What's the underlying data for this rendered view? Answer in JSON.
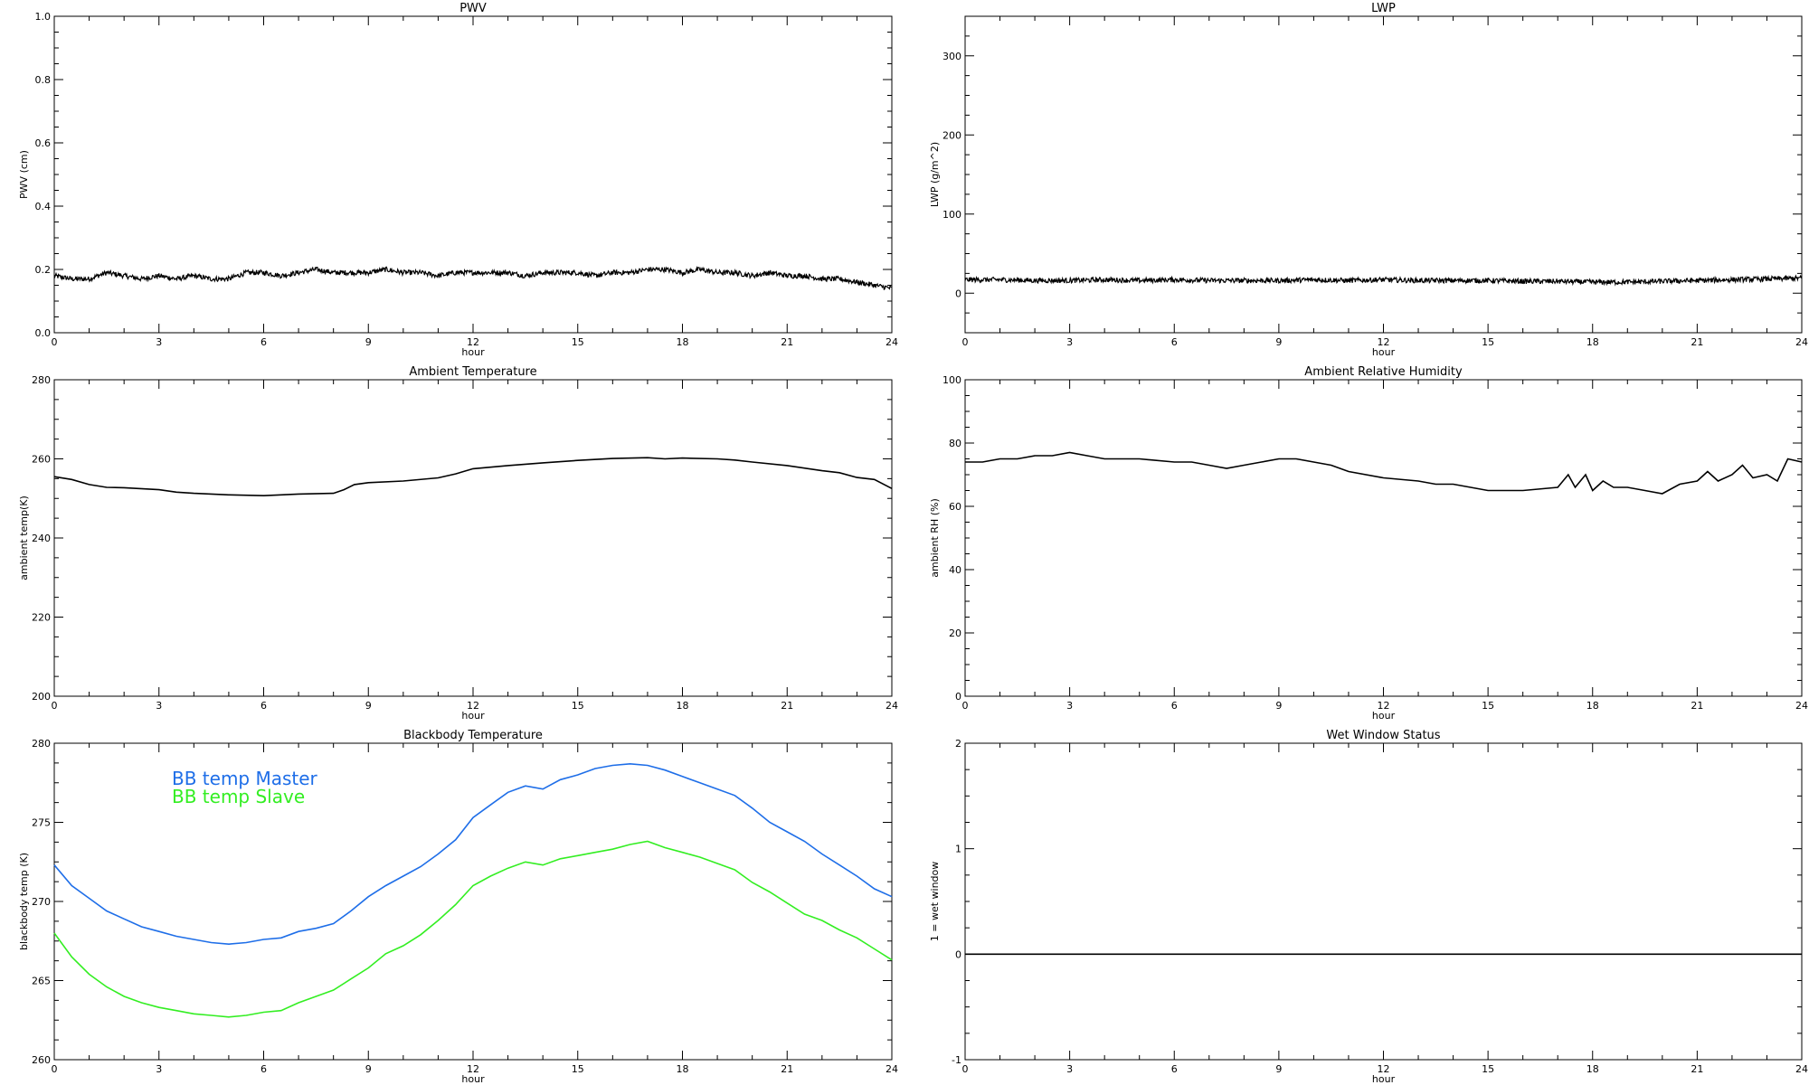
{
  "chart_data": [
    {
      "id": "pwv",
      "type": "line",
      "title": "PWV",
      "xlabel": "hour",
      "ylabel": "PWV (cm)",
      "xlim": [
        0,
        24
      ],
      "ylim": [
        0.0,
        1.0
      ],
      "xticks": [
        0,
        3,
        6,
        9,
        12,
        15,
        18,
        21,
        24
      ],
      "yticks": [
        "0.0",
        "0.2",
        "0.4",
        "0.6",
        "0.8",
        "1.0"
      ],
      "yticks_values": [
        0.0,
        0.2,
        0.4,
        0.6,
        0.8,
        1.0
      ],
      "series": [
        {
          "color": "#000000",
          "noisy": true,
          "x": [
            0,
            0.5,
            1,
            1.5,
            2,
            2.5,
            3,
            3.5,
            4,
            4.5,
            5,
            5.5,
            6,
            6.5,
            7,
            7.5,
            8,
            8.5,
            9,
            9.5,
            10,
            10.5,
            11,
            11.5,
            12,
            12.5,
            13,
            13.5,
            14,
            14.5,
            15,
            15.5,
            16,
            16.5,
            17,
            17.5,
            18,
            18.5,
            19,
            19.5,
            20,
            20.5,
            21,
            21.5,
            22,
            22.5,
            23,
            23.5,
            24
          ],
          "y": [
            0.18,
            0.17,
            0.17,
            0.19,
            0.18,
            0.17,
            0.18,
            0.17,
            0.18,
            0.17,
            0.17,
            0.19,
            0.19,
            0.18,
            0.19,
            0.2,
            0.19,
            0.19,
            0.19,
            0.2,
            0.19,
            0.19,
            0.18,
            0.19,
            0.19,
            0.19,
            0.19,
            0.18,
            0.19,
            0.19,
            0.19,
            0.18,
            0.19,
            0.19,
            0.2,
            0.2,
            0.19,
            0.2,
            0.19,
            0.19,
            0.18,
            0.19,
            0.18,
            0.18,
            0.17,
            0.17,
            0.16,
            0.15,
            0.14
          ]
        }
      ]
    },
    {
      "id": "lwp",
      "type": "line",
      "title": "LWP",
      "xlabel": "hour",
      "ylabel": "LWP (g/m^2)",
      "xlim": [
        0,
        24
      ],
      "ylim": [
        -50,
        350
      ],
      "xticks": [
        0,
        3,
        6,
        9,
        12,
        15,
        18,
        21,
        24
      ],
      "yticks": [
        "0",
        "100",
        "200",
        "300"
      ],
      "yticks_values": [
        0,
        100,
        200,
        300
      ],
      "series": [
        {
          "color": "#000000",
          "noisy": true,
          "x": [
            0,
            1,
            2,
            3,
            4,
            5,
            6,
            7,
            8,
            9,
            10,
            11,
            12,
            13,
            14,
            15,
            16,
            17,
            18,
            19,
            20,
            21,
            22,
            23,
            24
          ],
          "y": [
            17,
            17,
            16,
            16,
            17,
            16,
            17,
            16,
            16,
            16,
            17,
            16,
            17,
            16,
            16,
            16,
            15,
            15,
            14,
            14,
            15,
            16,
            17,
            18,
            19
          ]
        }
      ]
    },
    {
      "id": "ambient-temperature",
      "type": "line",
      "title": "Ambient Temperature",
      "xlabel": "hour",
      "ylabel": "ambient temp(K)",
      "xlim": [
        0,
        24
      ],
      "ylim": [
        200,
        280
      ],
      "xticks": [
        0,
        3,
        6,
        9,
        12,
        15,
        18,
        21,
        24
      ],
      "yticks": [
        "200",
        "220",
        "240",
        "260",
        "280"
      ],
      "yticks_values": [
        200,
        220,
        240,
        260,
        280
      ],
      "series": [
        {
          "color": "#000000",
          "x": [
            0,
            0.5,
            1,
            1.5,
            2,
            3,
            3.5,
            4,
            5,
            6,
            7,
            8,
            8.3,
            8.6,
            9,
            10,
            11,
            11.5,
            12,
            13,
            14,
            15,
            16,
            17,
            17.5,
            18,
            19,
            19.5,
            20,
            21,
            22,
            22.5,
            23,
            23.5,
            24
          ],
          "y": [
            255.5,
            254.8,
            253.5,
            252.8,
            252.7,
            252.2,
            251.6,
            251.3,
            250.9,
            250.7,
            251.1,
            251.3,
            252.2,
            253.5,
            254.0,
            254.4,
            255.2,
            256.2,
            257.5,
            258.3,
            259.0,
            259.6,
            260.1,
            260.3,
            260.0,
            260.2,
            260.0,
            259.7,
            259.2,
            258.3,
            257.0,
            256.5,
            255.3,
            254.8,
            252.5
          ]
        }
      ]
    },
    {
      "id": "ambient-relative-humidity",
      "type": "line",
      "title": "Ambient Relative Humidity",
      "xlabel": "hour",
      "ylabel": "ambient RH (%)",
      "xlim": [
        0,
        24
      ],
      "ylim": [
        0,
        100
      ],
      "xticks": [
        0,
        3,
        6,
        9,
        12,
        15,
        18,
        21,
        24
      ],
      "yticks": [
        "0",
        "20",
        "40",
        "60",
        "80",
        "100"
      ],
      "yticks_values": [
        0,
        20,
        40,
        60,
        80,
        100
      ],
      "series": [
        {
          "color": "#000000",
          "x": [
            0,
            0.5,
            1,
            1.5,
            2,
            2.5,
            3,
            3.5,
            4,
            5,
            6,
            6.5,
            7,
            7.5,
            8,
            8.5,
            9,
            9.5,
            10,
            10.5,
            11,
            12,
            13,
            13.5,
            14,
            14.5,
            15,
            16,
            17,
            17.3,
            17.5,
            17.8,
            18,
            18.3,
            18.6,
            19,
            19.5,
            20,
            20.5,
            21,
            21.3,
            21.6,
            22,
            22.3,
            22.6,
            23,
            23.3,
            23.6,
            24
          ],
          "y": [
            74,
            74,
            75,
            75,
            76,
            76,
            77,
            76,
            75,
            75,
            74,
            74,
            73,
            72,
            73,
            74,
            75,
            75,
            74,
            73,
            71,
            69,
            68,
            67,
            67,
            66,
            65,
            65,
            66,
            70,
            66,
            70,
            65,
            68,
            66,
            66,
            65,
            64,
            67,
            68,
            71,
            68,
            70,
            73,
            69,
            70,
            68,
            75,
            74
          ]
        }
      ]
    },
    {
      "id": "blackbody-temperature",
      "type": "line",
      "title": "Blackbody Temperature",
      "xlabel": "hour",
      "ylabel": "blackbody temp (K)",
      "xlim": [
        0,
        24
      ],
      "ylim": [
        260,
        280
      ],
      "xticks": [
        0,
        3,
        6,
        9,
        12,
        15,
        18,
        21,
        24
      ],
      "yticks": [
        "260",
        "265",
        "270",
        "275",
        "280"
      ],
      "yticks_values": [
        260,
        265,
        270,
        275,
        280
      ],
      "legend": "top-left",
      "series": [
        {
          "name": "BB temp Master",
          "color": "#1e6ee8",
          "x": [
            0,
            0.5,
            1,
            1.5,
            2,
            2.5,
            3,
            3.5,
            4,
            4.5,
            5,
            5.5,
            6,
            6.5,
            7,
            7.5,
            8,
            8.5,
            9,
            9.5,
            10,
            10.5,
            11,
            11.5,
            12,
            12.5,
            13,
            13.5,
            14,
            14.5,
            15,
            15.5,
            16,
            16.5,
            17,
            17.5,
            18,
            18.5,
            19,
            19.5,
            20,
            20.5,
            21,
            21.5,
            22,
            22.5,
            23,
            23.5,
            24
          ],
          "y": [
            272.3,
            271.0,
            270.2,
            269.4,
            268.9,
            268.4,
            268.1,
            267.8,
            267.6,
            267.4,
            267.3,
            267.4,
            267.6,
            267.7,
            268.1,
            268.3,
            268.6,
            269.4,
            270.3,
            271.0,
            271.6,
            272.2,
            273.0,
            273.9,
            275.3,
            276.1,
            276.9,
            277.3,
            277.1,
            277.7,
            278.0,
            278.4,
            278.6,
            278.7,
            278.6,
            278.3,
            277.9,
            277.5,
            277.1,
            276.7,
            275.9,
            275.0,
            274.4,
            273.8,
            273.0,
            272.3,
            271.6,
            270.8,
            270.3
          ]
        },
        {
          "name": "BB temp Slave",
          "color": "#33ee22",
          "x": [
            0,
            0.5,
            1,
            1.5,
            2,
            2.5,
            3,
            3.5,
            4,
            4.5,
            5,
            5.5,
            6,
            6.5,
            7,
            7.5,
            8,
            8.5,
            9,
            9.5,
            10,
            10.5,
            11,
            11.5,
            12,
            12.5,
            13,
            13.5,
            14,
            14.5,
            15,
            15.5,
            16,
            16.5,
            17,
            17.5,
            18,
            18.5,
            19,
            19.5,
            20,
            20.5,
            21,
            21.5,
            22,
            22.5,
            23,
            23.5,
            24
          ],
          "y": [
            268.0,
            266.5,
            265.4,
            264.6,
            264.0,
            263.6,
            263.3,
            263.1,
            262.9,
            262.8,
            262.7,
            262.8,
            263.0,
            263.1,
            263.6,
            264.0,
            264.4,
            265.1,
            265.8,
            266.7,
            267.2,
            267.9,
            268.8,
            269.8,
            271.0,
            271.6,
            272.1,
            272.5,
            272.3,
            272.7,
            272.9,
            273.1,
            273.3,
            273.6,
            273.8,
            273.4,
            273.1,
            272.8,
            272.4,
            272.0,
            271.2,
            270.6,
            269.9,
            269.2,
            268.8,
            268.2,
            267.7,
            267.0,
            266.3
          ]
        }
      ]
    },
    {
      "id": "wet-window-status",
      "type": "line",
      "title": "Wet Window Status",
      "xlabel": "hour",
      "ylabel": "1 = wet window",
      "xlim": [
        0,
        24
      ],
      "ylim": [
        -1,
        2
      ],
      "xticks": [
        0,
        3,
        6,
        9,
        12,
        15,
        18,
        21,
        24
      ],
      "yticks": [
        "-1",
        "0",
        "1",
        "2"
      ],
      "yticks_values": [
        -1,
        0,
        1,
        2
      ],
      "series": [
        {
          "color": "#000000",
          "x": [
            0,
            24
          ],
          "y": [
            0,
            0
          ]
        }
      ]
    }
  ]
}
